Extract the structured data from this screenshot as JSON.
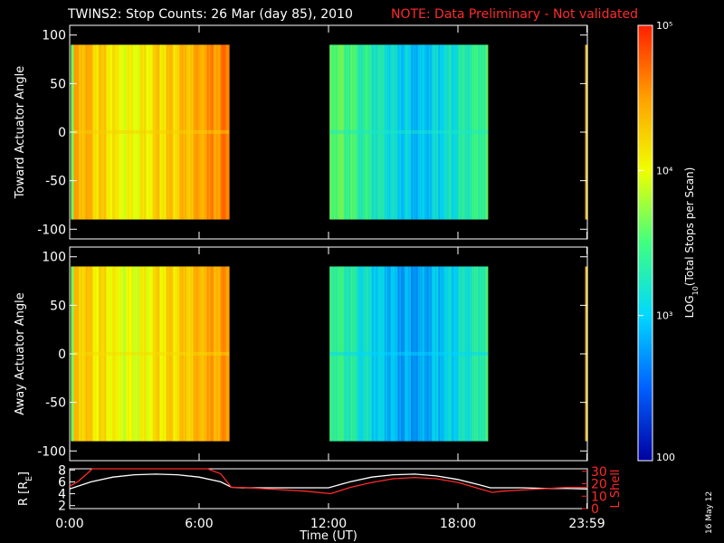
{
  "title": "TWINS2: Stop Counts: 26 Mar (day  85), 2010",
  "note": "NOTE: Data Preliminary - Not validated",
  "stamp": "16 May 12",
  "colors": {
    "background": "#000000",
    "note": "#ff2a2a",
    "r_line": "#ffffff",
    "lshell_line": "#ff2a2a",
    "frame": "#ffffff"
  },
  "colorbar": {
    "label": "LOG10(Total Stops per Scan)",
    "label_main": "LOG",
    "label_sub": "10",
    "label_rest": "(Total Stops per Scan)",
    "tick_labels": [
      "100",
      "10³",
      "10⁴",
      "10⁵"
    ],
    "tick_values": [
      100,
      1000,
      10000,
      100000
    ],
    "scale": "log",
    "colormap": [
      "#0000a0",
      "#0060ff",
      "#00d8ff",
      "#40ff80",
      "#f0ff00",
      "#ffa000",
      "#ff2000"
    ]
  },
  "chart_data": [
    {
      "type": "heatmap",
      "panel": "top",
      "ylabel": "Toward Actuator Angle",
      "ylim": [
        -110,
        110
      ],
      "yticks": [
        "100",
        "50",
        "0",
        "-50",
        "-100"
      ],
      "ytick_values": [
        100,
        50,
        0,
        -50,
        -100
      ],
      "xlim": [
        0,
        24
      ],
      "angle_range": [
        -90,
        90
      ],
      "data_segments": [
        {
          "start_hour": 0.1,
          "end_hour": 7.4,
          "level": "high",
          "profile": [
            0.82,
            0.78,
            0.72,
            0.68,
            0.7,
            0.74,
            0.76,
            0.8,
            0.85,
            0.88
          ]
        },
        {
          "start_hour": 12.05,
          "end_hour": 19.4,
          "level": "medium",
          "profile": [
            0.55,
            0.5,
            0.45,
            0.4,
            0.35,
            0.3,
            0.34,
            0.4,
            0.46,
            0.5
          ]
        }
      ],
      "missing": [
        [
          7.4,
          12.05
        ],
        [
          19.4,
          23.9
        ]
      ]
    },
    {
      "type": "heatmap",
      "panel": "middle",
      "ylabel": "Away Actuator Angle",
      "ylim": [
        -110,
        110
      ],
      "yticks": [
        "100",
        "50",
        "0",
        "-50",
        "-100"
      ],
      "ytick_values": [
        100,
        50,
        0,
        -50,
        -100
      ],
      "xlim": [
        0,
        24
      ],
      "angle_range": [
        -90,
        90
      ],
      "data_segments": [
        {
          "start_hour": 0.1,
          "end_hour": 7.4,
          "level": "high",
          "profile": [
            0.78,
            0.74,
            0.7,
            0.66,
            0.68,
            0.72,
            0.74,
            0.78,
            0.82,
            0.84
          ]
        },
        {
          "start_hour": 12.05,
          "end_hour": 19.4,
          "level": "medium",
          "profile": [
            0.5,
            0.44,
            0.38,
            0.32,
            0.28,
            0.26,
            0.3,
            0.36,
            0.42,
            0.48
          ]
        }
      ],
      "missing": [
        [
          7.4,
          12.05
        ],
        [
          19.4,
          23.9
        ]
      ]
    },
    {
      "type": "line",
      "panel": "bottom",
      "xlabel": "Time (UT)",
      "xticks": [
        "0:00",
        "6:00",
        "12:00",
        "18:00",
        "23:59"
      ],
      "xtick_values": [
        0,
        6,
        12,
        18,
        23.98
      ],
      "xlim": [
        0,
        24
      ],
      "ylabel": "R [R",
      "ylabel_sub": "E",
      "ylabel_close": "]",
      "yticks": [
        "8",
        "6",
        "4",
        "2"
      ],
      "ytick_values": [
        8,
        6,
        4,
        2
      ],
      "ylim": [
        1.5,
        8.2
      ],
      "y2label": "L Shell",
      "y2ticks": [
        "30",
        "20",
        "10",
        "0"
      ],
      "y2tick_values": [
        30,
        20,
        10,
        0
      ],
      "y2lim": [
        0,
        32
      ],
      "series": [
        {
          "name": "R [RE]",
          "axis": "left",
          "x": [
            0,
            1,
            2,
            3,
            4,
            5,
            6,
            7,
            7.5,
            8,
            9,
            10,
            11,
            12,
            13,
            14,
            15,
            16,
            17,
            18,
            19,
            19.5,
            20,
            21,
            22,
            23,
            24
          ],
          "y": [
            4.8,
            6.0,
            6.8,
            7.2,
            7.3,
            7.2,
            6.8,
            6.0,
            5.1,
            5.0,
            5.0,
            5.0,
            5.0,
            5.0,
            6.0,
            6.8,
            7.2,
            7.3,
            7.0,
            6.4,
            5.5,
            5.0,
            5.0,
            5.0,
            4.9,
            4.9,
            4.8
          ]
        },
        {
          "name": "L Shell",
          "axis": "right",
          "x": [
            0,
            0.4,
            0.8,
            1.05,
            5.5,
            6.4,
            7.0,
            7.5,
            8,
            9,
            10,
            11,
            12.1,
            13,
            14,
            15,
            16,
            17,
            18,
            19,
            19.6,
            20,
            21,
            22,
            23,
            24
          ],
          "y": [
            18,
            22,
            28,
            32,
            32,
            32,
            28,
            17,
            17,
            16,
            15,
            14,
            12,
            17,
            21,
            24,
            25,
            24,
            21,
            16,
            13,
            14,
            15,
            16,
            17,
            17
          ]
        }
      ]
    }
  ]
}
